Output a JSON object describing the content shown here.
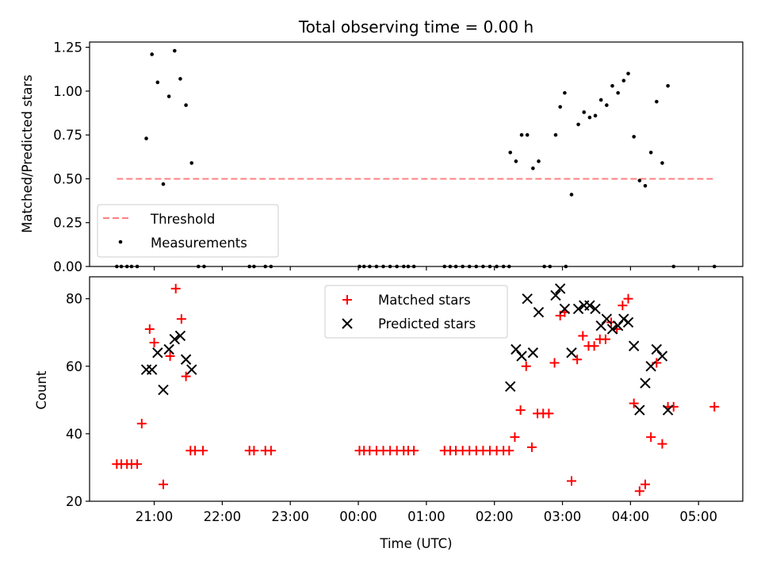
{
  "chart_data": [
    {
      "type": "scatter",
      "title": "Total observing time = 0.00 h",
      "xlabel": "",
      "ylabel": "Matched/Predicted stars",
      "ylim": [
        0,
        1.28
      ],
      "yticks": [
        0.0,
        0.25,
        0.5,
        0.75,
        1.0,
        1.25
      ],
      "ytick_labels": [
        "0.00",
        "0.25",
        "0.50",
        "0.75",
        "1.00",
        "1.25"
      ],
      "xlim": [
        "20:03",
        "05:39"
      ],
      "xticks": [
        "21:00",
        "22:00",
        "23:00",
        "00:00",
        "01:00",
        "02:00",
        "03:00",
        "04:00",
        "05:00"
      ],
      "show_xtick_labels": false,
      "grid": false,
      "legend": "lower-left",
      "threshold": {
        "name": "Threshold",
        "y": 0.5,
        "x_start": "20:27",
        "x_end": "05:14",
        "color": "#ff8080",
        "style": "dashed"
      },
      "series": [
        {
          "name": "Measurements",
          "color": "#000000",
          "marker": "dot",
          "points": [
            [
              "20:27",
              0.0
            ],
            [
              "20:31",
              0.0
            ],
            [
              "20:36",
              0.0
            ],
            [
              "20:40",
              0.0
            ],
            [
              "20:45",
              0.0
            ],
            [
              "20:53",
              0.73
            ],
            [
              "20:58",
              1.21
            ],
            [
              "21:03",
              1.05
            ],
            [
              "21:08",
              0.47
            ],
            [
              "21:13",
              0.97
            ],
            [
              "21:18",
              1.23
            ],
            [
              "21:23",
              1.07
            ],
            [
              "21:28",
              0.92
            ],
            [
              "21:33",
              0.59
            ],
            [
              "21:39",
              0.0
            ],
            [
              "21:44",
              0.0
            ],
            [
              "22:24",
              0.0
            ],
            [
              "22:28",
              0.0
            ],
            [
              "22:38",
              0.0
            ],
            [
              "22:43",
              0.0
            ],
            [
              "00:01",
              0.0
            ],
            [
              "00:05",
              0.0
            ],
            [
              "00:10",
              0.0
            ],
            [
              "00:16",
              0.0
            ],
            [
              "00:22",
              0.0
            ],
            [
              "00:28",
              0.0
            ],
            [
              "00:34",
              0.0
            ],
            [
              "00:40",
              0.0
            ],
            [
              "00:44",
              0.0
            ],
            [
              "00:49",
              0.0
            ],
            [
              "01:16",
              0.0
            ],
            [
              "01:21",
              0.0
            ],
            [
              "01:26",
              0.0
            ],
            [
              "01:32",
              0.0
            ],
            [
              "01:38",
              0.0
            ],
            [
              "01:44",
              0.0
            ],
            [
              "01:50",
              0.0
            ],
            [
              "01:56",
              0.0
            ],
            [
              "02:02",
              0.0
            ],
            [
              "02:08",
              0.0
            ],
            [
              "02:13",
              0.0
            ],
            [
              "02:14",
              0.65
            ],
            [
              "02:19",
              0.6
            ],
            [
              "02:24",
              0.75
            ],
            [
              "02:29",
              0.75
            ],
            [
              "02:34",
              0.56
            ],
            [
              "02:39",
              0.6
            ],
            [
              "02:44",
              0.0
            ],
            [
              "02:49",
              0.0
            ],
            [
              "02:54",
              0.75
            ],
            [
              "02:58",
              0.91
            ],
            [
              "03:02",
              0.99
            ],
            [
              "03:03",
              0.0
            ],
            [
              "03:08",
              0.41
            ],
            [
              "03:14",
              0.81
            ],
            [
              "03:19",
              0.88
            ],
            [
              "03:24",
              0.85
            ],
            [
              "03:29",
              0.86
            ],
            [
              "03:34",
              0.95
            ],
            [
              "03:39",
              0.92
            ],
            [
              "03:44",
              1.03
            ],
            [
              "03:49",
              0.99
            ],
            [
              "03:54",
              1.06
            ],
            [
              "03:58",
              1.1
            ],
            [
              "04:03",
              0.74
            ],
            [
              "04:08",
              0.49
            ],
            [
              "04:13",
              0.46
            ],
            [
              "04:18",
              0.65
            ],
            [
              "04:23",
              0.94
            ],
            [
              "04:28",
              0.59
            ],
            [
              "04:33",
              1.03
            ],
            [
              "04:38",
              0.0
            ],
            [
              "05:14",
              0.0
            ]
          ]
        }
      ]
    },
    {
      "type": "scatter",
      "title": "",
      "xlabel": "Time (UTC)",
      "ylabel": "Count",
      "ylim": [
        20,
        86.5
      ],
      "yticks": [
        20,
        40,
        60,
        80
      ],
      "ytick_labels": [
        "20",
        "40",
        "60",
        "80"
      ],
      "xlim": [
        "20:03",
        "05:39"
      ],
      "xticks": [
        "21:00",
        "22:00",
        "23:00",
        "00:00",
        "01:00",
        "02:00",
        "03:00",
        "04:00",
        "05:00"
      ],
      "xtick_labels": [
        "21:00",
        "22:00",
        "23:00",
        "00:00",
        "01:00",
        "02:00",
        "03:00",
        "04:00",
        "05:00"
      ],
      "grid": false,
      "legend": "top-center",
      "series": [
        {
          "name": "Matched stars",
          "color": "#ff0000",
          "marker": "plus",
          "points": [
            [
              "20:27",
              31
            ],
            [
              "20:31",
              31
            ],
            [
              "20:36",
              31
            ],
            [
              "20:40",
              31
            ],
            [
              "20:45",
              31
            ],
            [
              "20:49",
              43
            ],
            [
              "20:56",
              71
            ],
            [
              "21:00",
              67
            ],
            [
              "21:08",
              25
            ],
            [
              "21:14",
              63
            ],
            [
              "21:19",
              83
            ],
            [
              "21:24",
              74
            ],
            [
              "21:28",
              57
            ],
            [
              "21:32",
              35
            ],
            [
              "21:36",
              35
            ],
            [
              "21:43",
              35
            ],
            [
              "22:24",
              35
            ],
            [
              "22:28",
              35
            ],
            [
              "22:38",
              35
            ],
            [
              "22:43",
              35
            ],
            [
              "00:01",
              35
            ],
            [
              "00:05",
              35
            ],
            [
              "00:10",
              35
            ],
            [
              "00:16",
              35
            ],
            [
              "00:22",
              35
            ],
            [
              "00:28",
              35
            ],
            [
              "00:34",
              35
            ],
            [
              "00:40",
              35
            ],
            [
              "00:44",
              35
            ],
            [
              "00:49",
              35
            ],
            [
              "01:16",
              35
            ],
            [
              "01:21",
              35
            ],
            [
              "01:26",
              35
            ],
            [
              "01:32",
              35
            ],
            [
              "01:38",
              35
            ],
            [
              "01:44",
              35
            ],
            [
              "01:50",
              35
            ],
            [
              "01:56",
              35
            ],
            [
              "02:02",
              35
            ],
            [
              "02:08",
              35
            ],
            [
              "02:13",
              35
            ],
            [
              "02:18",
              39
            ],
            [
              "02:23",
              47
            ],
            [
              "02:28",
              60
            ],
            [
              "02:33",
              36
            ],
            [
              "02:38",
              46
            ],
            [
              "02:43",
              46
            ],
            [
              "02:48",
              46
            ],
            [
              "02:53",
              61
            ],
            [
              "02:58",
              75
            ],
            [
              "03:02",
              76
            ],
            [
              "03:08",
              26
            ],
            [
              "03:13",
              62
            ],
            [
              "03:18",
              69
            ],
            [
              "03:23",
              66
            ],
            [
              "03:28",
              66
            ],
            [
              "03:33",
              68
            ],
            [
              "03:38",
              68
            ],
            [
              "03:43",
              73
            ],
            [
              "03:48",
              71
            ],
            [
              "03:53",
              78
            ],
            [
              "03:58",
              80
            ],
            [
              "04:03",
              49
            ],
            [
              "04:08",
              23
            ],
            [
              "04:13",
              25
            ],
            [
              "04:18",
              39
            ],
            [
              "04:23",
              61
            ],
            [
              "04:28",
              37
            ],
            [
              "04:33",
              48
            ],
            [
              "04:38",
              48
            ],
            [
              "05:14",
              48
            ]
          ]
        },
        {
          "name": "Predicted stars",
          "color": "#000000",
          "marker": "x",
          "points": [
            [
              "20:53",
              59
            ],
            [
              "20:58",
              59
            ],
            [
              "21:03",
              64
            ],
            [
              "21:08",
              53
            ],
            [
              "21:13",
              65
            ],
            [
              "21:18",
              68
            ],
            [
              "21:23",
              69
            ],
            [
              "21:28",
              62
            ],
            [
              "21:33",
              59
            ],
            [
              "02:14",
              54
            ],
            [
              "02:19",
              65
            ],
            [
              "02:24",
              63
            ],
            [
              "02:29",
              80
            ],
            [
              "02:34",
              64
            ],
            [
              "02:39",
              76
            ],
            [
              "02:54",
              81
            ],
            [
              "02:58",
              83
            ],
            [
              "03:02",
              77
            ],
            [
              "03:08",
              64
            ],
            [
              "03:14",
              77
            ],
            [
              "03:19",
              78
            ],
            [
              "03:24",
              78
            ],
            [
              "03:29",
              77
            ],
            [
              "03:34",
              72
            ],
            [
              "03:39",
              74
            ],
            [
              "03:44",
              71
            ],
            [
              "03:49",
              72
            ],
            [
              "03:54",
              74
            ],
            [
              "03:58",
              73
            ],
            [
              "04:03",
              66
            ],
            [
              "04:08",
              47
            ],
            [
              "04:13",
              55
            ],
            [
              "04:18",
              60
            ],
            [
              "04:23",
              65
            ],
            [
              "04:28",
              63
            ],
            [
              "04:33",
              47
            ]
          ]
        }
      ]
    }
  ]
}
